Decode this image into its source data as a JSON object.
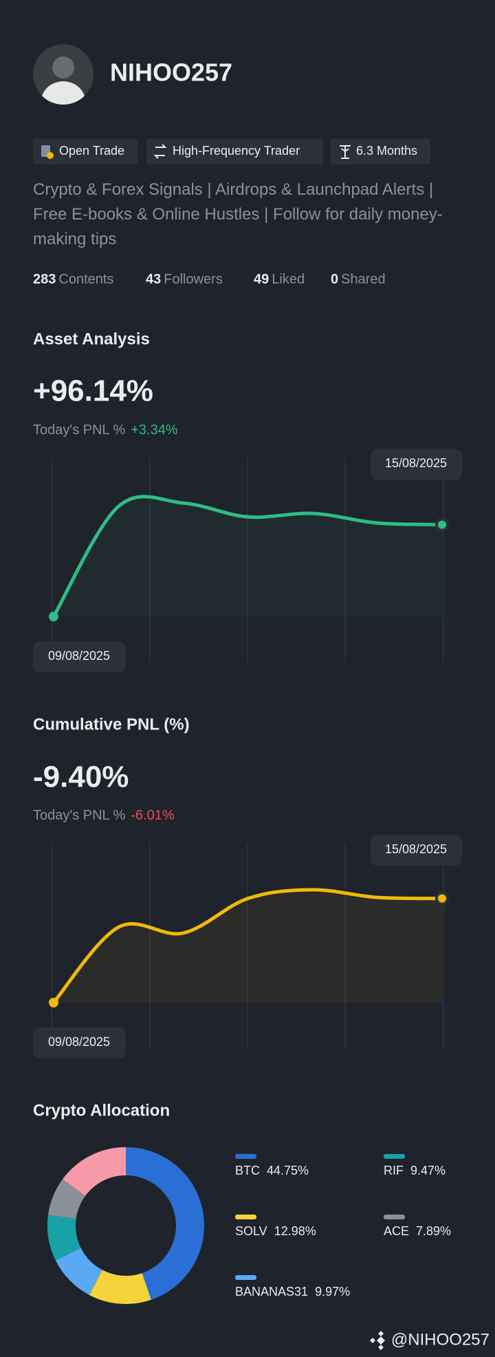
{
  "profile": {
    "name": "NIHOO257",
    "badges": [
      "Open Trade",
      "High-Frequency Trader",
      "6.3 Months"
    ],
    "bio": "Crypto & Forex Signals | Airdrops & Launchpad Alerts | Free E-books & Online Hustles | Follow for daily money-making tips",
    "stats": [
      {
        "value": 283,
        "label": "Contents"
      },
      {
        "value": 43,
        "label": "Followers"
      },
      {
        "value": 49,
        "label": "Liked"
      },
      {
        "value": 0,
        "label": "Shared"
      }
    ]
  },
  "chart_data": [
    {
      "type": "line",
      "title": "Asset Analysis",
      "headline": {
        "value": 96.14,
        "label": "+96.14%"
      },
      "today_label": "Today's PNL %",
      "today": {
        "value": 3.34,
        "label": "+3.34%"
      },
      "categories": [
        "09/08/2025",
        null,
        null,
        null,
        null,
        null,
        "15/08/2025"
      ],
      "series": [
        {
          "color": "#2ebd85",
          "values": [
            0,
            115.2,
            118.8,
            104.3,
            107.9,
            97.9,
            96.14
          ]
        }
      ]
    },
    {
      "type": "line",
      "title": "Cumulative PNL (%)",
      "headline": {
        "value": -9.4,
        "label": "-9.40%"
      },
      "today_label": "Today's PNL %",
      "today": {
        "value": -6.01,
        "label": "-6.01%"
      },
      "categories": [
        "09/08/2025",
        null,
        null,
        null,
        null,
        null,
        "15/08/2025"
      ],
      "series": [
        {
          "color": "#f0b90b",
          "values": [
            -50,
            -20.6,
            -22.9,
            -9.4,
            -6.0,
            -9.0,
            -9.4
          ]
        }
      ]
    },
    {
      "type": "pie",
      "title": "Crypto Allocation",
      "categories": [
        "BTC",
        "SOLV",
        "BANANAS31",
        "RIF",
        "ACE",
        null
      ],
      "values": [
        44.75,
        12.98,
        9.97,
        9.47,
        7.89,
        14.94
      ],
      "value_labels": [
        "44.75%",
        "12.98%",
        "9.97%",
        "9.47%",
        "7.89%",
        null
      ],
      "colors": [
        "#2a6fd6",
        "#f5d33a",
        "#5aa9f5",
        "#17a2a8",
        "#8a8f99",
        "#f59aa6"
      ]
    }
  ],
  "footer": "@NIHOO257"
}
